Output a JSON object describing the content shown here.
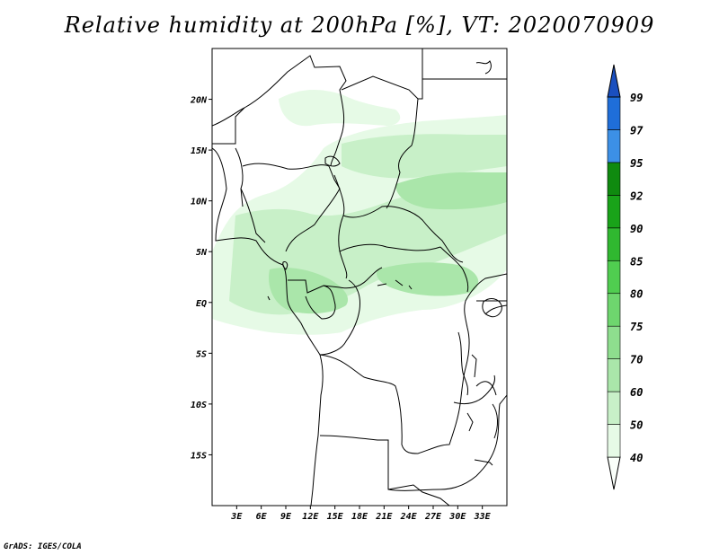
{
  "title": "Relative humidity at 200hPa [%], VT: 2020070909",
  "credit": "GrADS: IGES/COLA",
  "map": {
    "lon_range_deg_east": [
      0,
      36
    ],
    "lat_range_deg": [
      -20,
      25
    ],
    "lat_ticks": [
      "20N",
      "15N",
      "10N",
      "5N",
      "EQ",
      "5S",
      "10S",
      "15S"
    ],
    "lon_ticks": [
      "3E",
      "6E",
      "9E",
      "12E",
      "15E",
      "18E",
      "21E",
      "24E",
      "27E",
      "30E",
      "33E"
    ]
  },
  "colorbar": {
    "levels": [
      "40",
      "50",
      "60",
      "70",
      "75",
      "80",
      "85",
      "90",
      "92",
      "95",
      "97",
      "99"
    ],
    "colors": [
      "#fafffa",
      "#e6fae6",
      "#c8f0c8",
      "#aae6aa",
      "#8ede8e",
      "#6ed66e",
      "#50cd50",
      "#30b830",
      "#19a319",
      "#0f8a0f",
      "#3c90e6",
      "#1f6ed9",
      "#1a4fbf"
    ]
  },
  "colors": {
    "coast": "#000000",
    "background": "#ffffff"
  }
}
